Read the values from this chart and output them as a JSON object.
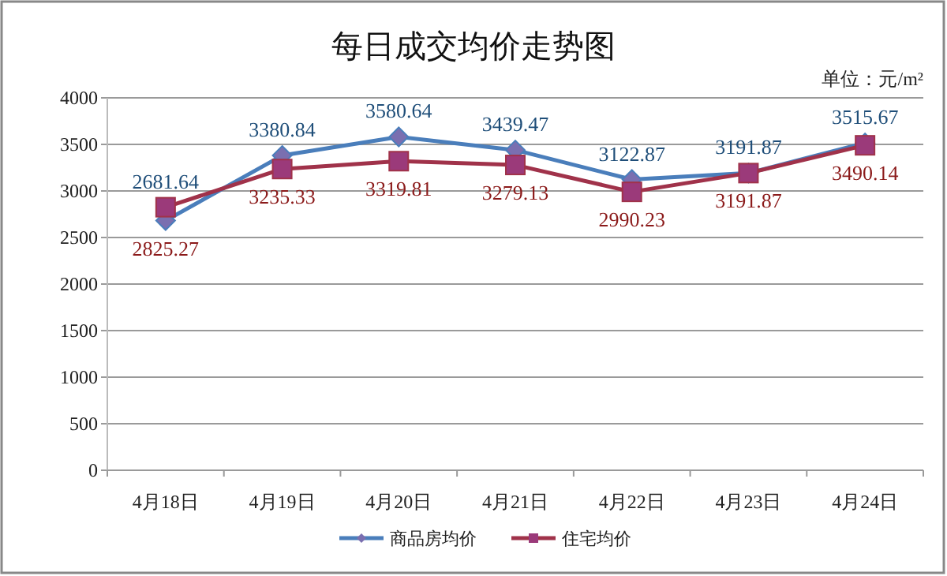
{
  "chart_data": {
    "type": "line",
    "title": "每日成交均价走势图",
    "annotations": [
      "单位：元/m²"
    ],
    "categories": [
      "4月18日",
      "4月19日",
      "4月20日",
      "4月21日",
      "4月22日",
      "4月23日",
      "4月24日"
    ],
    "series": [
      {
        "name": "商品房均价",
        "color": "#4a7ebb",
        "marker": "diamond",
        "values": [
          2681.64,
          3380.84,
          3580.64,
          3439.47,
          3122.87,
          3191.87,
          3515.67
        ]
      },
      {
        "name": "住宅均价",
        "color": "#a0324a",
        "marker": "square",
        "values": [
          2825.27,
          3235.33,
          3319.81,
          3279.13,
          2990.23,
          3191.87,
          3490.14
        ]
      }
    ],
    "ylim": [
      0,
      4000
    ],
    "yticks": [
      0,
      500,
      1000,
      1500,
      2000,
      2500,
      3000,
      3500,
      4000
    ],
    "grid": "y",
    "legend": "bottom",
    "data_labels": true,
    "line_style": "solid"
  }
}
